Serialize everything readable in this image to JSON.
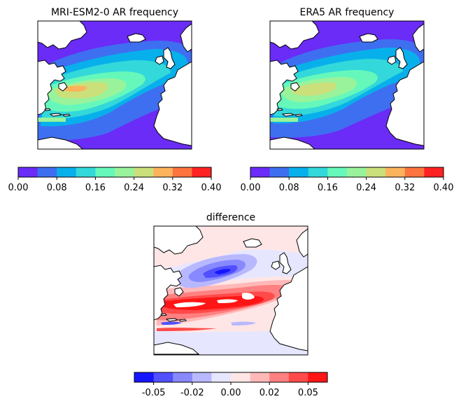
{
  "chart_data": [
    {
      "type": "heatmap",
      "title": "MRI-ESM2-0 AR frequency",
      "colorbar": {
        "levels": [
          0.0,
          0.04,
          0.08,
          0.12,
          0.16,
          0.2,
          0.24,
          0.28,
          0.32,
          0.36,
          0.4
        ],
        "ticks": [
          0.0,
          0.08,
          0.16,
          0.24,
          0.32,
          0.4
        ],
        "tick_labels": [
          "0.00",
          "0.08",
          "0.16",
          "0.24",
          "0.32",
          "0.40"
        ],
        "colors": [
          "#6a2cf6",
          "#3f6ff1",
          "#08b0eb",
          "#33d8da",
          "#66f8bb",
          "#99f39b",
          "#cbe07b",
          "#fdb35b",
          "#fe743e",
          "#ff2222"
        ]
      },
      "peak_value_approx": 0.3
    },
    {
      "type": "heatmap",
      "title": "ERA5 AR frequency",
      "colorbar": {
        "levels": [
          0.0,
          0.04,
          0.08,
          0.12,
          0.16,
          0.2,
          0.24,
          0.28,
          0.32,
          0.36,
          0.4
        ],
        "ticks": [
          0.0,
          0.08,
          0.16,
          0.24,
          0.32,
          0.4
        ],
        "tick_labels": [
          "0.00",
          "0.08",
          "0.16",
          "0.24",
          "0.32",
          "0.40"
        ],
        "colors": [
          "#6a2cf6",
          "#3f6ff1",
          "#08b0eb",
          "#33d8da",
          "#66f8bb",
          "#99f39b",
          "#cbe07b",
          "#fdb35b",
          "#fe743e",
          "#ff2222"
        ]
      },
      "peak_value_approx": 0.26
    },
    {
      "type": "heatmap",
      "title": "difference",
      "colorbar": {
        "ticks": [
          -0.05,
          -0.02,
          0.0,
          0.02,
          0.05
        ],
        "tick_labels": [
          "-0.05",
          "-0.02",
          "0.00",
          "0.02",
          "0.05"
        ],
        "colors": [
          "#1515ff",
          "#5050ff",
          "#8888ff",
          "#b8b8ff",
          "#e6e6ff",
          "#ffe6e6",
          "#ffb8b8",
          "#ff8080",
          "#ff4a4a",
          "#ff1515"
        ]
      },
      "min_value_approx": -0.05,
      "max_value_approx": 0.06
    }
  ]
}
